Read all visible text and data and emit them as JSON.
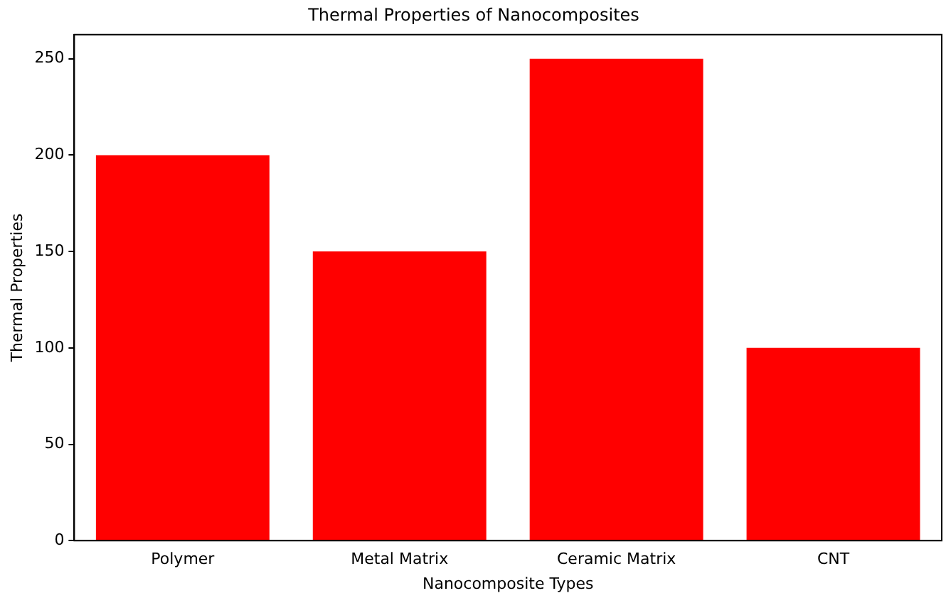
{
  "chart_data": {
    "type": "bar",
    "title": "Thermal Properties of Nanocomposites",
    "xlabel": "Nanocomposite Types",
    "ylabel": "Thermal Properties",
    "categories": [
      "Polymer",
      "Metal Matrix",
      "Ceramic Matrix",
      "CNT"
    ],
    "values": [
      200,
      150,
      250,
      100
    ],
    "color": "#ff0000",
    "ylim": [
      0,
      262.5
    ],
    "yticks": [
      0,
      50,
      100,
      150,
      200,
      250
    ],
    "grid": false,
    "legend": false
  }
}
